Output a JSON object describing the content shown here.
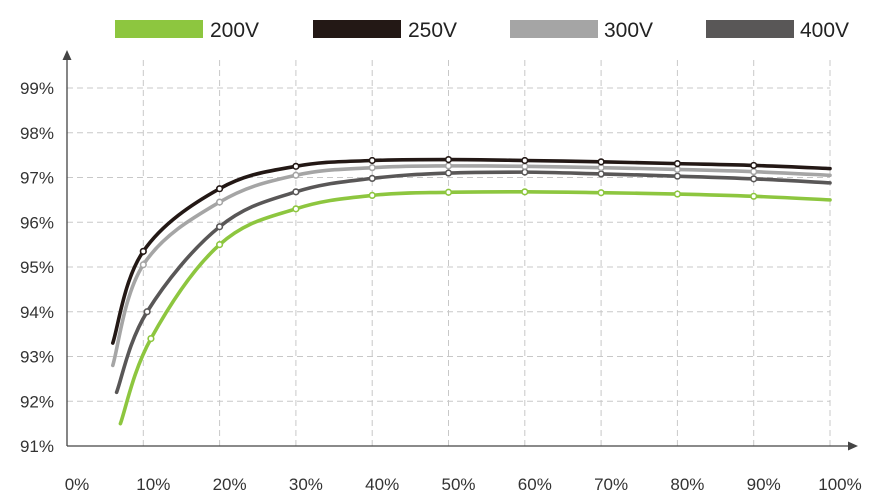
{
  "chart_data": {
    "type": "line",
    "title": "",
    "xlabel": "",
    "ylabel": "",
    "xlim": [
      0,
      100
    ],
    "ylim": [
      91,
      99
    ],
    "x_ticks": [
      0,
      10,
      20,
      30,
      40,
      50,
      60,
      70,
      80,
      90,
      100
    ],
    "x_tick_labels": [
      "0%",
      "10%",
      "20%",
      "30%",
      "40%",
      "50%",
      "60%",
      "70%",
      "80%",
      "90%",
      "100%"
    ],
    "y_ticks": [
      91,
      92,
      93,
      94,
      95,
      96,
      97,
      98,
      99
    ],
    "y_tick_labels": [
      "91%",
      "92%",
      "93%",
      "94%",
      "95%",
      "96%",
      "97%",
      "98%",
      "99%"
    ],
    "grid": true,
    "legend_position": "top",
    "series": [
      {
        "name": "200V",
        "color": "#8dc63f",
        "x": [
          7,
          11,
          20,
          30,
          40,
          50,
          60,
          70,
          80,
          90,
          100
        ],
        "values": [
          91.5,
          93.4,
          95.5,
          96.3,
          96.6,
          96.67,
          96.68,
          96.66,
          96.63,
          96.58,
          96.5
        ]
      },
      {
        "name": "250V",
        "color": "#231815",
        "x": [
          6,
          10,
          20,
          30,
          40,
          50,
          60,
          70,
          80,
          90,
          100
        ],
        "values": [
          93.3,
          95.35,
          96.75,
          97.25,
          97.38,
          97.4,
          97.38,
          97.35,
          97.31,
          97.27,
          97.2
        ]
      },
      {
        "name": "300V",
        "color": "#a5a5a5",
        "x": [
          6,
          10,
          20,
          30,
          40,
          50,
          60,
          70,
          80,
          90,
          100
        ],
        "values": [
          92.8,
          95.05,
          96.45,
          97.05,
          97.22,
          97.26,
          97.25,
          97.22,
          97.18,
          97.13,
          97.05
        ]
      },
      {
        "name": "400V",
        "color": "#595757",
        "x": [
          6.5,
          10.5,
          20,
          30,
          40,
          50,
          60,
          70,
          80,
          90,
          100
        ],
        "values": [
          92.2,
          94.0,
          95.9,
          96.68,
          96.98,
          97.1,
          97.12,
          97.08,
          97.03,
          96.97,
          96.88
        ]
      }
    ]
  }
}
